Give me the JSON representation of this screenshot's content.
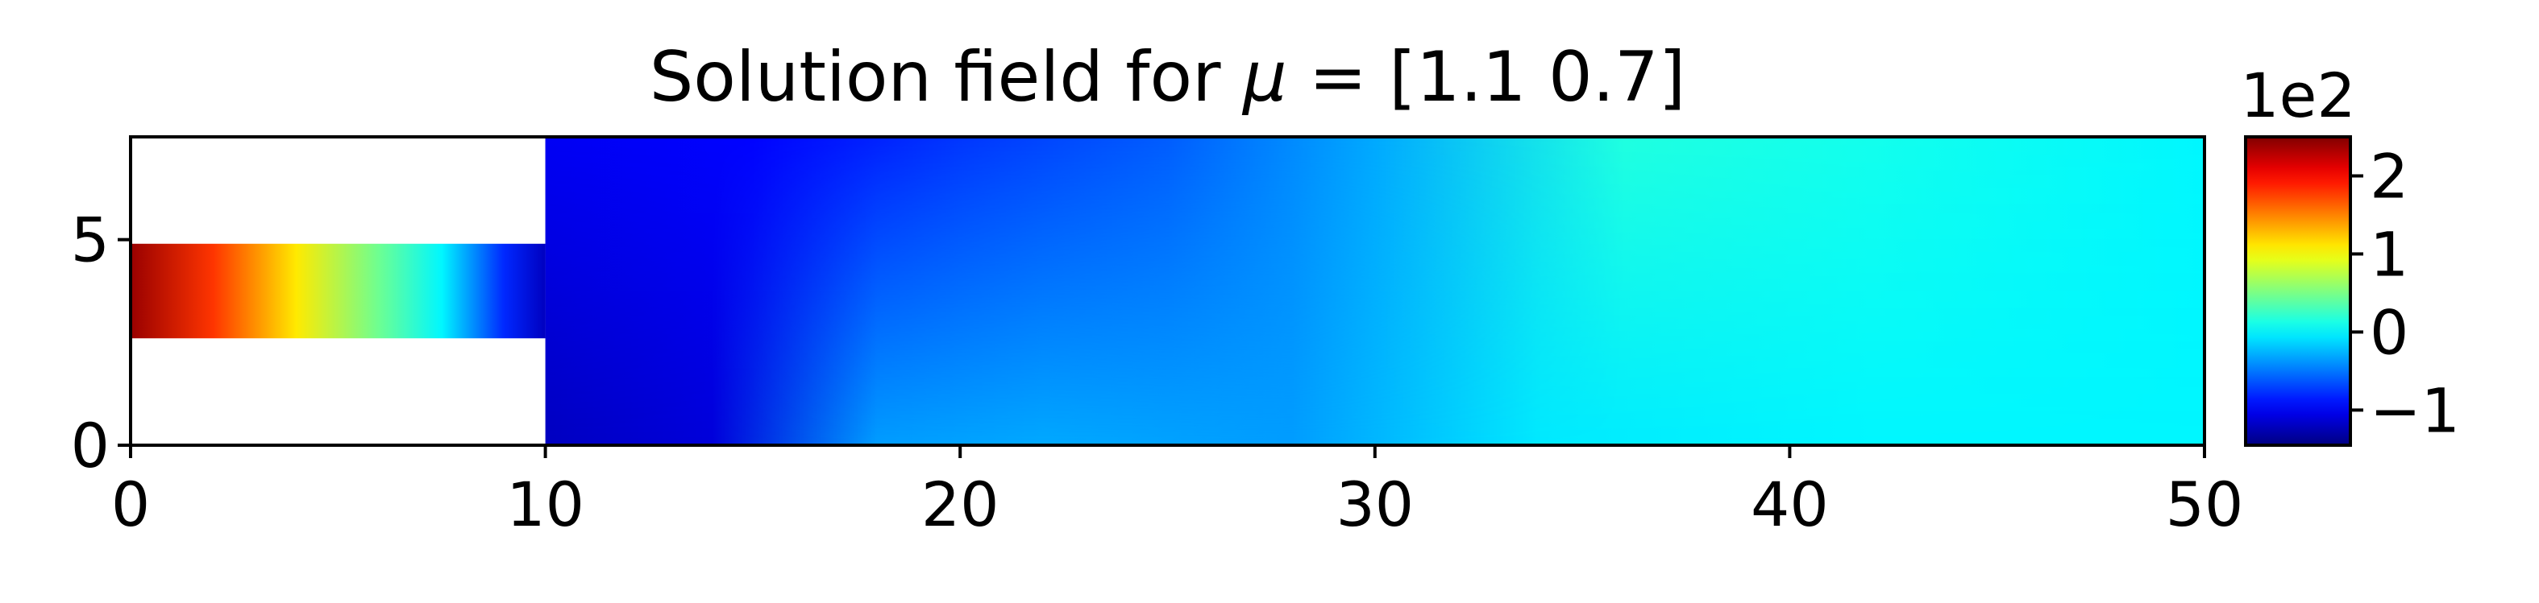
{
  "chart_data": {
    "type": "heatmap",
    "title": {
      "prefix": "Solution field for ",
      "symbol": "μ",
      "suffix": " = [1.1 0.7]"
    },
    "xlabel": "",
    "ylabel": "",
    "xlim": [
      0,
      50
    ],
    "ylim": [
      0,
      7.5
    ],
    "x_ticks": [
      0,
      10,
      20,
      30,
      40,
      50
    ],
    "y_ticks": [
      0,
      5
    ],
    "x_tick_labels": [
      "0",
      "10",
      "20",
      "30",
      "40",
      "50"
    ],
    "y_tick_labels": [
      "0",
      "5"
    ],
    "colormap": "jet",
    "colorbar": {
      "multiplier_label": "1e2",
      "range": [
        -1.45,
        2.5
      ],
      "ticks": [
        -1,
        0,
        1,
        2
      ],
      "tick_labels": [
        "−1",
        "0",
        "1",
        "2"
      ]
    },
    "domain": {
      "inlet_channel": {
        "x": [
          0,
          10
        ],
        "y": [
          2.6,
          4.9
        ]
      },
      "main_channel": {
        "x": [
          10,
          50
        ],
        "y": [
          0,
          7.5
        ]
      }
    },
    "approximate_field_values_1e2": {
      "inlet_channel": [
        {
          "x": 0,
          "value": 2.4
        },
        {
          "x": 2,
          "value": 1.8
        },
        {
          "x": 4,
          "value": 1.1
        },
        {
          "x": 6,
          "value": 0.45
        },
        {
          "x": 7.5,
          "value": 0.0
        },
        {
          "x": 9,
          "value": -0.8
        },
        {
          "x": 10,
          "value": -1.2
        }
      ],
      "main_channel_bottom": [
        {
          "x": 10,
          "value": -1.2
        },
        {
          "x": 14,
          "value": -1.1
        },
        {
          "x": 18,
          "value": -0.35
        },
        {
          "x": 22,
          "value": -0.3
        },
        {
          "x": 28,
          "value": -0.35
        },
        {
          "x": 34,
          "value": -0.05
        },
        {
          "x": 42,
          "value": 0.0
        },
        {
          "x": 50,
          "value": 0.0
        }
      ],
      "main_channel_top": [
        {
          "x": 10,
          "value": -1.0
        },
        {
          "x": 15,
          "value": -0.95
        },
        {
          "x": 20,
          "value": -0.75
        },
        {
          "x": 25,
          "value": -0.6
        },
        {
          "x": 30,
          "value": -0.3
        },
        {
          "x": 36,
          "value": 0.15
        },
        {
          "x": 42,
          "value": 0.1
        },
        {
          "x": 50,
          "value": 0.0
        }
      ]
    }
  }
}
